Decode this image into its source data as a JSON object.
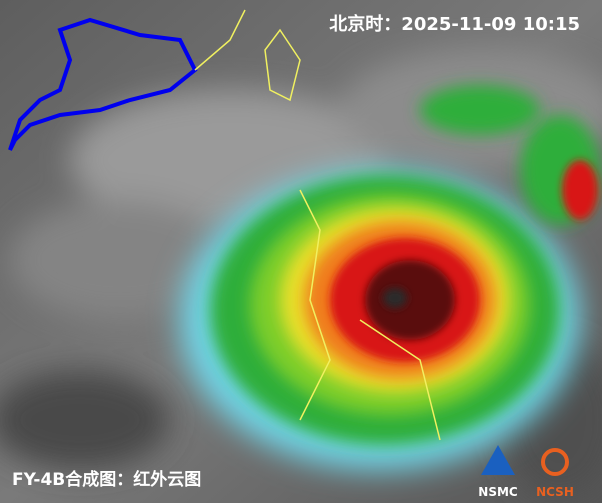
{
  "header": {
    "timestamp": "北京时：2025-11-09 10:15"
  },
  "caption": "FY-4B合成图：红外云图",
  "logos": [
    "NSMC",
    "NCSH"
  ]
}
